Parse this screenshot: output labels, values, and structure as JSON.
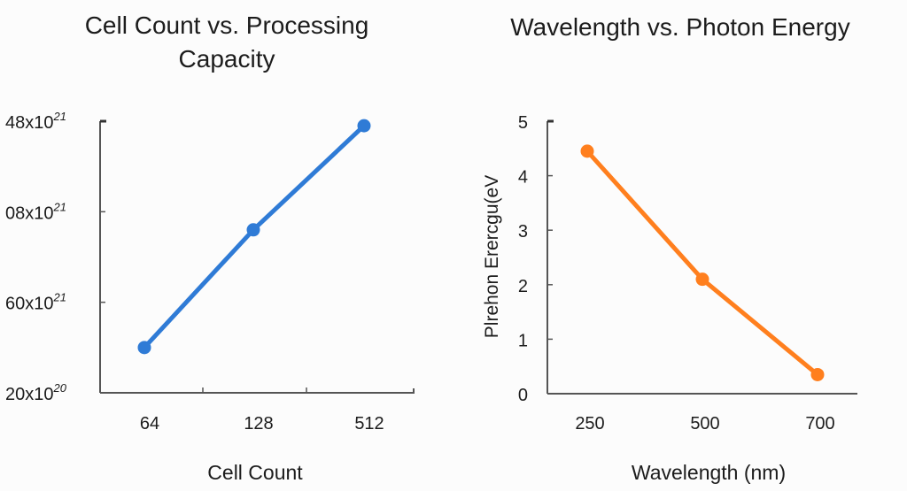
{
  "chart_data": [
    {
      "type": "line",
      "title": "Cell Count vs. Processing Capacity",
      "title_lines": [
        "Cell Count vs. Processing",
        "Capacity"
      ],
      "xlabel": "Cell Count",
      "ylabel": "",
      "categories": [
        "64",
        "128",
        "512"
      ],
      "yticks": [
        {
          "mantissa": "20",
          "exp": "20",
          "pos": 0
        },
        {
          "mantissa": "60",
          "exp": "21",
          "pos": 1
        },
        {
          "mantissa": "08",
          "exp": "21",
          "pos": 2
        },
        {
          "mantissa": "48",
          "exp": "21",
          "pos": 3
        }
      ],
      "ylim": [
        0,
        3
      ],
      "series": [
        {
          "name": "Processing Capacity",
          "color": "#2f7bd6",
          "values": [
            0.5,
            1.8,
            2.95
          ]
        }
      ],
      "grid": false,
      "legend": "none"
    },
    {
      "type": "line",
      "title": "Wavelength vs. Photon Energy",
      "xlabel": "Wavelength (nm)",
      "ylabel": "Plrehon Erercgu(eV",
      "categories": [
        "250",
        "500",
        "700"
      ],
      "yticks": [
        "0",
        "1",
        "2",
        "3",
        "4",
        "5"
      ],
      "ylim": [
        0,
        5
      ],
      "series": [
        {
          "name": "Photon Energy",
          "color": "#ff7f1e",
          "values": [
            4.45,
            2.1,
            0.35
          ]
        }
      ],
      "grid": false,
      "legend": "none"
    }
  ]
}
